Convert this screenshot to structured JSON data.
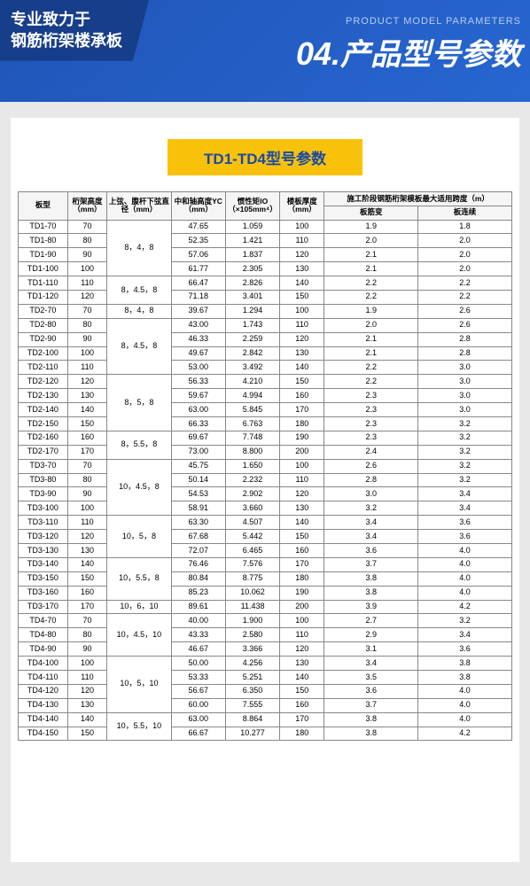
{
  "header": {
    "ribbon_line1": "专业致力于",
    "ribbon_line2": "钢筋桁架楼承板",
    "eng": "PRODUCT MODEL PARAMETERS",
    "num": "04.",
    "title": "产品型号参数"
  },
  "section": {
    "title": "TD1-TD4型号参数"
  },
  "table": {
    "headers": {
      "model": "板型",
      "height": "桁架高度（mm）",
      "dia": "上弦、腹杆下弦直径（mm）",
      "yc": "中和轴高度YC（mm）",
      "io": "惯性矩IO（×105mm⁴）",
      "thick": "楼板厚度（mm）",
      "span_top": "施工阶段钢筋桁架模板最大适用跨度（m）",
      "span1": "板筋变",
      "span2": "板连续"
    },
    "groups": [
      {
        "dia": "8，4，8",
        "rows": [
          {
            "m": "TD1-70",
            "h": "70",
            "yc": "47.65",
            "io": "1.059",
            "t": "100",
            "s1": "1.9",
            "s2": "1.8"
          },
          {
            "m": "TD1-80",
            "h": "80",
            "yc": "52.35",
            "io": "1.421",
            "t": "110",
            "s1": "2.0",
            "s2": "2.0"
          },
          {
            "m": "TD1-90",
            "h": "90",
            "yc": "57.06",
            "io": "1.837",
            "t": "120",
            "s1": "2.1",
            "s2": "2.0"
          },
          {
            "m": "TD1-100",
            "h": "100",
            "yc": "61.77",
            "io": "2.305",
            "t": "130",
            "s1": "2.1",
            "s2": "2.0"
          }
        ]
      },
      {
        "dia": "8，4.5，8",
        "rows": [
          {
            "m": "TD1-110",
            "h": "110",
            "yc": "66.47",
            "io": "2.826",
            "t": "140",
            "s1": "2.2",
            "s2": "2.2"
          },
          {
            "m": "TD1-120",
            "h": "120",
            "yc": "71.18",
            "io": "3.401",
            "t": "150",
            "s1": "2.2",
            "s2": "2.2"
          }
        ]
      },
      {
        "dia": "8，4，8",
        "rows": [
          {
            "m": "TD2-70",
            "h": "70",
            "yc": "39.67",
            "io": "1.294",
            "t": "100",
            "s1": "1.9",
            "s2": "2.6"
          }
        ]
      },
      {
        "dia": "8，4.5，8",
        "rows": [
          {
            "m": "TD2-80",
            "h": "80",
            "yc": "43.00",
            "io": "1.743",
            "t": "110",
            "s1": "2.0",
            "s2": "2.6"
          },
          {
            "m": "TD2-90",
            "h": "90",
            "yc": "46.33",
            "io": "2.259",
            "t": "120",
            "s1": "2.1",
            "s2": "2.8"
          },
          {
            "m": "TD2-100",
            "h": "100",
            "yc": "49.67",
            "io": "2.842",
            "t": "130",
            "s1": "2.1",
            "s2": "2.8"
          },
          {
            "m": "TD2-110",
            "h": "110",
            "yc": "53.00",
            "io": "3.492",
            "t": "140",
            "s1": "2.2",
            "s2": "3.0"
          }
        ]
      },
      {
        "dia": "8，5，8",
        "rows": [
          {
            "m": "TD2-120",
            "h": "120",
            "yc": "56.33",
            "io": "4.210",
            "t": "150",
            "s1": "2.2",
            "s2": "3.0"
          },
          {
            "m": "TD2-130",
            "h": "130",
            "yc": "59.67",
            "io": "4.994",
            "t": "160",
            "s1": "2.3",
            "s2": "3.0"
          },
          {
            "m": "TD2-140",
            "h": "140",
            "yc": "63.00",
            "io": "5.845",
            "t": "170",
            "s1": "2.3",
            "s2": "3.0"
          },
          {
            "m": "TD2-150",
            "h": "150",
            "yc": "66.33",
            "io": "6.763",
            "t": "180",
            "s1": "2.3",
            "s2": "3.2"
          }
        ]
      },
      {
        "dia": "8，5.5，8",
        "rows": [
          {
            "m": "TD2-160",
            "h": "160",
            "yc": "69.67",
            "io": "7.748",
            "t": "190",
            "s1": "2.3",
            "s2": "3.2"
          },
          {
            "m": "TD2-170",
            "h": "170",
            "yc": "73.00",
            "io": "8.800",
            "t": "200",
            "s1": "2.4",
            "s2": "3.2"
          }
        ]
      },
      {
        "dia": "10，4.5，8",
        "rows": [
          {
            "m": "TD3-70",
            "h": "70",
            "yc": "45.75",
            "io": "1.650",
            "t": "100",
            "s1": "2.6",
            "s2": "3.2"
          },
          {
            "m": "TD3-80",
            "h": "80",
            "yc": "50.14",
            "io": "2.232",
            "t": "110",
            "s1": "2.8",
            "s2": "3.2"
          },
          {
            "m": "TD3-90",
            "h": "90",
            "yc": "54.53",
            "io": "2.902",
            "t": "120",
            "s1": "3.0",
            "s2": "3.4"
          },
          {
            "m": "TD3-100",
            "h": "100",
            "yc": "58.91",
            "io": "3.660",
            "t": "130",
            "s1": "3.2",
            "s2": "3.4"
          }
        ]
      },
      {
        "dia": "10，5，8",
        "rows": [
          {
            "m": "TD3-110",
            "h": "110",
            "yc": "63.30",
            "io": "4.507",
            "t": "140",
            "s1": "3.4",
            "s2": "3.6"
          },
          {
            "m": "TD3-120",
            "h": "120",
            "yc": "67.68",
            "io": "5.442",
            "t": "150",
            "s1": "3.4",
            "s2": "3.6"
          },
          {
            "m": "TD3-130",
            "h": "130",
            "yc": "72.07",
            "io": "6.465",
            "t": "160",
            "s1": "3.6",
            "s2": "4.0"
          }
        ]
      },
      {
        "dia": "10，5.5，8",
        "rows": [
          {
            "m": "TD3-140",
            "h": "140",
            "yc": "76.46",
            "io": "7.576",
            "t": "170",
            "s1": "3.7",
            "s2": "4.0"
          },
          {
            "m": "TD3-150",
            "h": "150",
            "yc": "80.84",
            "io": "8.775",
            "t": "180",
            "s1": "3.8",
            "s2": "4.0"
          },
          {
            "m": "TD3-160",
            "h": "160",
            "yc": "85.23",
            "io": "10.062",
            "t": "190",
            "s1": "3.8",
            "s2": "4.0"
          }
        ]
      },
      {
        "dia": "10，6，10",
        "rows": [
          {
            "m": "TD3-170",
            "h": "170",
            "yc": "89.61",
            "io": "11.438",
            "t": "200",
            "s1": "3.9",
            "s2": "4.2"
          }
        ]
      },
      {
        "dia": "10，4.5，10",
        "rows": [
          {
            "m": "TD4-70",
            "h": "70",
            "yc": "40.00",
            "io": "1.900",
            "t": "100",
            "s1": "2.7",
            "s2": "3.2"
          },
          {
            "m": "TD4-80",
            "h": "80",
            "yc": "43.33",
            "io": "2.580",
            "t": "110",
            "s1": "2.9",
            "s2": "3.4"
          },
          {
            "m": "TD4-90",
            "h": "90",
            "yc": "46.67",
            "io": "3.366",
            "t": "120",
            "s1": "3.1",
            "s2": "3.6"
          }
        ]
      },
      {
        "dia": "10，5，10",
        "rows": [
          {
            "m": "TD4-100",
            "h": "100",
            "yc": "50.00",
            "io": "4.256",
            "t": "130",
            "s1": "3.4",
            "s2": "3.8"
          },
          {
            "m": "TD4-110",
            "h": "110",
            "yc": "53.33",
            "io": "5.251",
            "t": "140",
            "s1": "3.5",
            "s2": "3.8"
          },
          {
            "m": "TD4-120",
            "h": "120",
            "yc": "56.67",
            "io": "6.350",
            "t": "150",
            "s1": "3.6",
            "s2": "4.0"
          },
          {
            "m": "TD4-130",
            "h": "130",
            "yc": "60.00",
            "io": "7.555",
            "t": "160",
            "s1": "3.7",
            "s2": "4.0"
          }
        ]
      },
      {
        "dia": "10，5.5，10",
        "rows": [
          {
            "m": "TD4-140",
            "h": "140",
            "yc": "63.00",
            "io": "8.864",
            "t": "170",
            "s1": "3.8",
            "s2": "4.0"
          },
          {
            "m": "TD4-150",
            "h": "150",
            "yc": "66.67",
            "io": "10.277",
            "t": "180",
            "s1": "3.8",
            "s2": "4.2"
          }
        ]
      }
    ]
  }
}
